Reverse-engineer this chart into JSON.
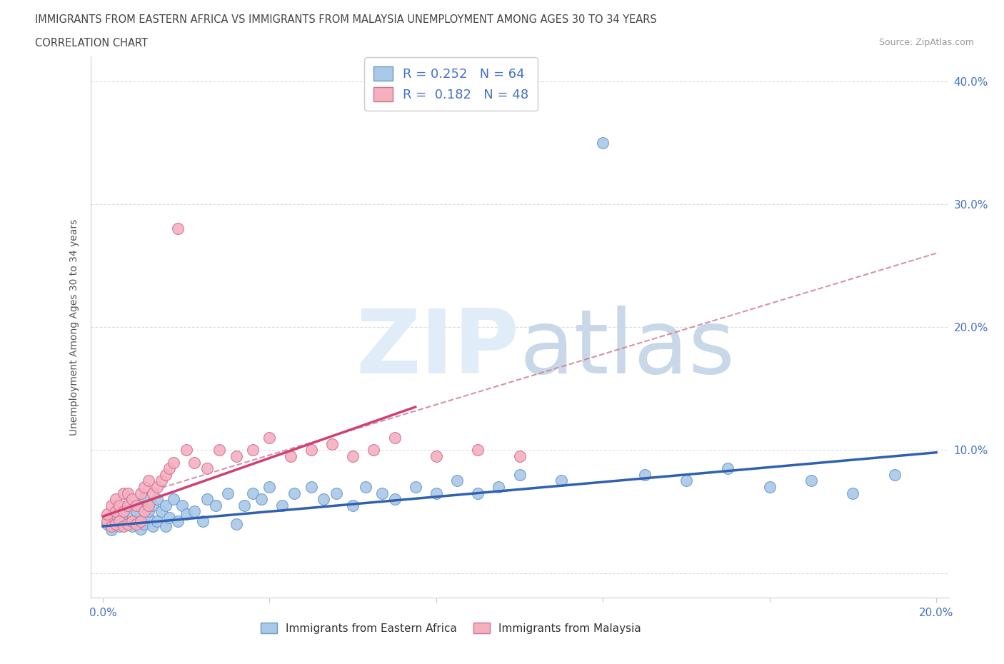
{
  "title_line1": "IMMIGRANTS FROM EASTERN AFRICA VS IMMIGRANTS FROM MALAYSIA UNEMPLOYMENT AMONG AGES 30 TO 34 YEARS",
  "title_line2": "CORRELATION CHART",
  "source_text": "Source: ZipAtlas.com",
  "ylabel": "Unemployment Among Ages 30 to 34 years",
  "xlim": [
    -0.003,
    0.203
  ],
  "ylim": [
    -0.02,
    0.42
  ],
  "x_ticks": [
    0.0,
    0.04,
    0.08,
    0.12,
    0.16,
    0.2
  ],
  "x_tick_labels": [
    "0.0%",
    "",
    "",
    "",
    "",
    "20.0%"
  ],
  "y_ticks": [
    0.0,
    0.1,
    0.2,
    0.3,
    0.4
  ],
  "y_tick_labels": [
    "",
    "10.0%",
    "20.0%",
    "30.0%",
    "40.0%"
  ],
  "color_blue": "#aac8e8",
  "color_pink": "#f5b0c0",
  "edge_blue": "#6898c8",
  "edge_pink": "#d07090",
  "line_color_blue": "#3060b0",
  "line_color_pink": "#d04070",
  "line_color_dash": "#d08090",
  "text_color": "#4472c4",
  "title_color": "#444444",
  "grid_color": "#dddddd",
  "watermark_color": "#ddeef8",
  "R_blue": "0.252",
  "N_blue": "64",
  "R_pink": "0.182",
  "N_pink": "48",
  "legend_label_blue": "Immigrants from Eastern Africa",
  "legend_label_pink": "Immigrants from Malaysia",
  "blue_x": [
    0.001,
    0.002,
    0.003,
    0.004,
    0.005,
    0.005,
    0.006,
    0.006,
    0.007,
    0.007,
    0.008,
    0.008,
    0.009,
    0.009,
    0.01,
    0.01,
    0.011,
    0.011,
    0.012,
    0.012,
    0.013,
    0.013,
    0.014,
    0.015,
    0.015,
    0.016,
    0.017,
    0.018,
    0.019,
    0.02,
    0.022,
    0.024,
    0.025,
    0.027,
    0.03,
    0.032,
    0.034,
    0.036,
    0.038,
    0.04,
    0.043,
    0.046,
    0.05,
    0.053,
    0.056,
    0.06,
    0.063,
    0.067,
    0.07,
    0.075,
    0.08,
    0.085,
    0.09,
    0.095,
    0.1,
    0.11,
    0.12,
    0.13,
    0.14,
    0.15,
    0.16,
    0.17,
    0.18,
    0.19
  ],
  "blue_y": [
    0.04,
    0.035,
    0.045,
    0.038,
    0.042,
    0.05,
    0.04,
    0.055,
    0.038,
    0.048,
    0.042,
    0.05,
    0.036,
    0.055,
    0.04,
    0.06,
    0.045,
    0.05,
    0.038,
    0.055,
    0.042,
    0.06,
    0.05,
    0.038,
    0.055,
    0.045,
    0.06,
    0.042,
    0.055,
    0.048,
    0.05,
    0.042,
    0.06,
    0.055,
    0.065,
    0.04,
    0.055,
    0.065,
    0.06,
    0.07,
    0.055,
    0.065,
    0.07,
    0.06,
    0.065,
    0.055,
    0.07,
    0.065,
    0.06,
    0.07,
    0.065,
    0.075,
    0.065,
    0.07,
    0.08,
    0.075,
    0.35,
    0.08,
    0.075,
    0.085,
    0.07,
    0.075,
    0.065,
    0.08
  ],
  "pink_x": [
    0.001,
    0.001,
    0.002,
    0.002,
    0.003,
    0.003,
    0.003,
    0.004,
    0.004,
    0.005,
    0.005,
    0.005,
    0.006,
    0.006,
    0.006,
    0.007,
    0.007,
    0.008,
    0.008,
    0.009,
    0.009,
    0.01,
    0.01,
    0.011,
    0.011,
    0.012,
    0.013,
    0.014,
    0.015,
    0.016,
    0.017,
    0.018,
    0.02,
    0.022,
    0.025,
    0.028,
    0.032,
    0.036,
    0.04,
    0.045,
    0.05,
    0.055,
    0.06,
    0.065,
    0.07,
    0.08,
    0.09,
    0.1
  ],
  "pink_y": [
    0.042,
    0.048,
    0.038,
    0.055,
    0.04,
    0.05,
    0.06,
    0.042,
    0.055,
    0.038,
    0.05,
    0.065,
    0.04,
    0.055,
    0.065,
    0.042,
    0.06,
    0.04,
    0.055,
    0.042,
    0.065,
    0.05,
    0.07,
    0.055,
    0.075,
    0.065,
    0.07,
    0.075,
    0.08,
    0.085,
    0.09,
    0.28,
    0.1,
    0.09,
    0.085,
    0.1,
    0.095,
    0.1,
    0.11,
    0.095,
    0.1,
    0.105,
    0.095,
    0.1,
    0.11,
    0.095,
    0.1,
    0.095
  ],
  "blue_trend_x": [
    0.0,
    0.2
  ],
  "blue_trend_y": [
    0.038,
    0.098
  ],
  "pink_trend_x": [
    0.0,
    0.075
  ],
  "pink_trend_y": [
    0.046,
    0.135
  ],
  "dash_trend_x": [
    0.005,
    0.2
  ],
  "dash_trend_y": [
    0.06,
    0.26
  ]
}
